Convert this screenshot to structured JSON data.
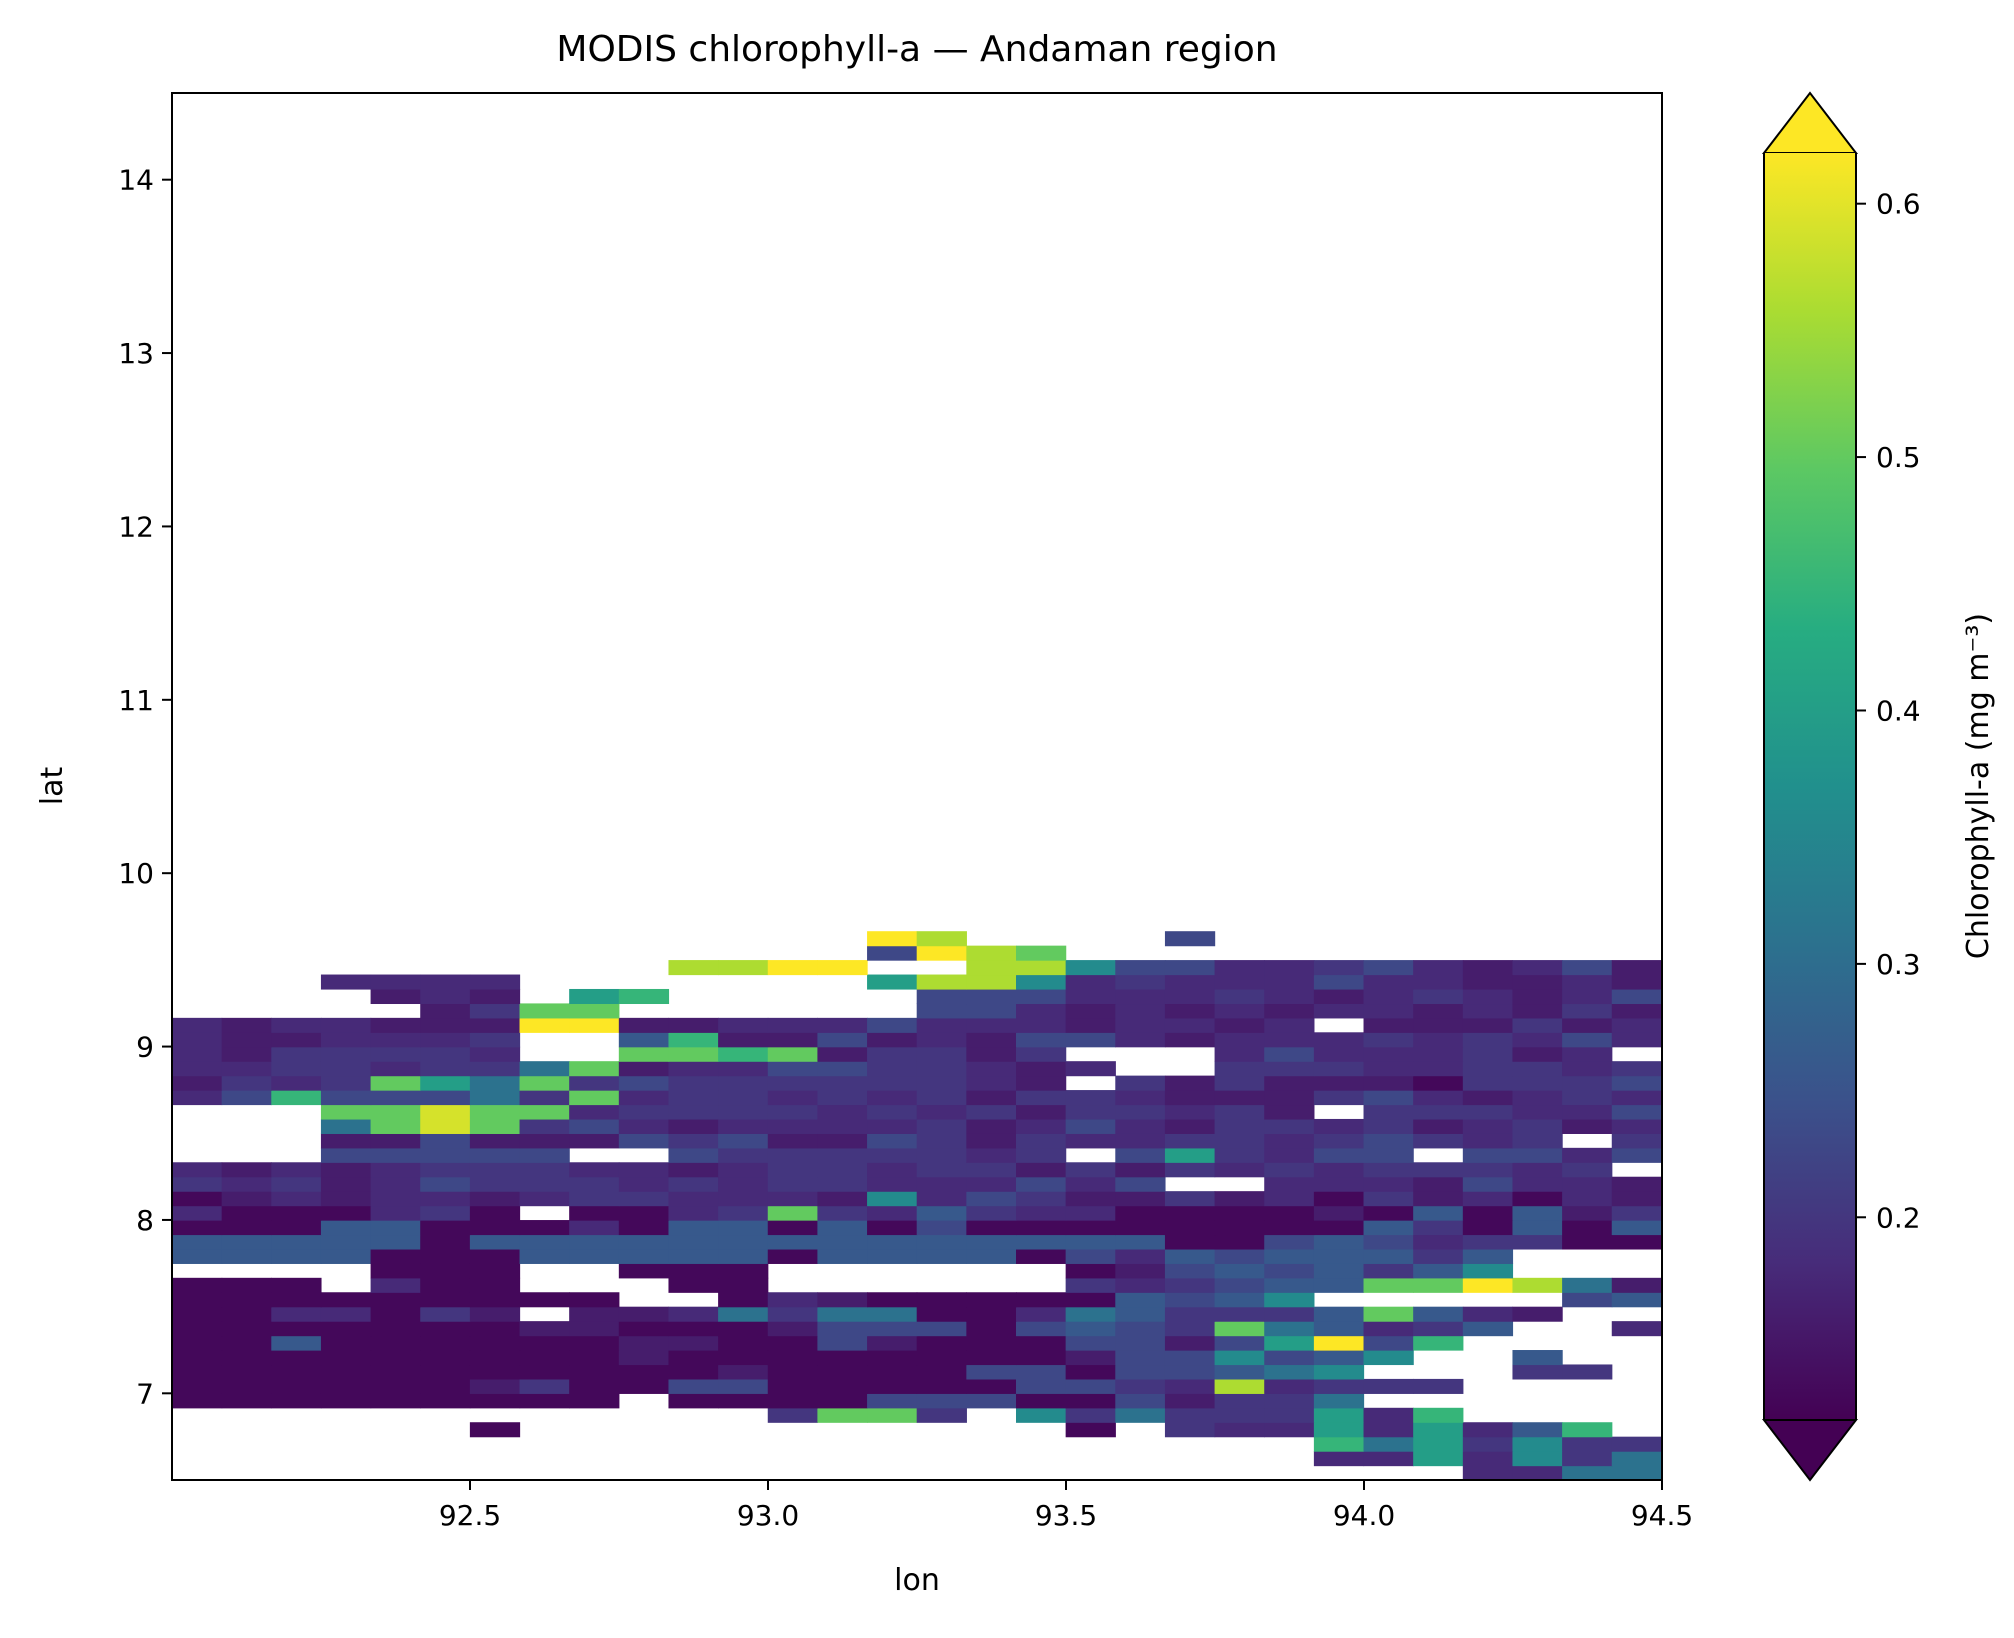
{
  "chart_data": {
    "type": "heatmap",
    "title": "MODIS chlorophyll-a — Andaman region",
    "xlabel": "lon",
    "ylabel": "lat",
    "xlim": [
      92.0,
      94.5
    ],
    "ylim": [
      6.5,
      14.5
    ],
    "x_ticks": [
      92.5,
      93.0,
      93.5,
      94.0,
      94.5
    ],
    "x_tick_labels": [
      "92.5",
      "93.0",
      "93.5",
      "94.0",
      "94.5"
    ],
    "y_ticks": [
      7,
      8,
      9,
      10,
      11,
      12,
      13,
      14
    ],
    "y_tick_labels": [
      "7",
      "8",
      "9",
      "10",
      "11",
      "12",
      "13",
      "14"
    ],
    "colorbar": {
      "label": "Chlorophyll-a (mg m⁻³)",
      "colormap": "viridis",
      "vmin": 0.12,
      "vmax": 0.62,
      "extend": "both",
      "ticks": [
        0.2,
        0.3,
        0.4,
        0.5,
        0.6
      ],
      "tick_labels": [
        "0.2",
        "0.3",
        "0.4",
        "0.5",
        "0.6"
      ]
    },
    "grid": false,
    "cell_size_deg": 0.0833,
    "lon_start": 92.0,
    "lat_start": 6.5,
    "rows_lat_ascending": [
      "..........................++000*=*",
      ".......................++o+@*0**oo",
      ".......................%0o*@**@@=o",
      "......-...........-.*++o+o+=%.+*o+",
      "............*&&*.@*0***o+%.....-..",
      "---------.----:::--:/**0'.........",
      "------/*--::-----::*+>+***........",
      "-----------/----::-::=0@...**..**-",
      "---------/--------/::@:=@..=...*..",
      "--=------//--:/---::/:o^:%;...*---",
      "-------//---/:::-:=:*&0=+*=..+****",
      "--++-*/.//+0*00--+0=***=&=+/..-/--",
      "---------..-+/-----=:=@.....:=*.--",
      "---.+--...--......*+*:==&&^>0/--..",
      "....---..---......-/:=:=*=@......-",
      "====---=====-====-:+=:===*=.....--",
      "=====-==============--:=:+**--=---",
      "---==---+-==-=-:--------=*-=-=----",
      "+---+*-.--+*&*+=*++----/-=-=/*----",
      "-/+/++/+**+++/@+:*//*/+-*/+-+/++++",
      "*+*/+:***+*+**+++:+:..+++/:++/*++*",
      "+/+/+***++/+**+**/*/*+*+***+*.+/*:",
      "...:::::..:*****+*.:o*+::.::+:**::",
      "...//:///:*://:*/*++**+*:*+*.*//*+",
      "...0&<&*:+/++++*/+:+/**+*/+*/+*+/+",
      "...&&<&&+****+*+*/**+*/.***++:/.**",
      "+:%:::0*&+**+*+*/**+///*:+/+*+/+*/",
      "/*+*&o0&*:******+/.*/*///-***:/*//",
      "++**+**0&/++::**+/+..***++**+*/*++",
      "+/****+..&&%&/**/*...+:+++*/+.//++",
      "+//+++*..=%//:/+/::+/+++*+*+:++/+*",
      "+/++///^^//+++:+++/++/+.///*/+/+++",
      "...../*&&......::+/+/+/++/+/*////*",
      "..../+/.o%.....:::+++*+/+*+/+://///",
      "...++++.......o>>@+*+++:++//+//++//",
      "..........>>^^..>>@::++*:+/+:/+++::",
      "..............:^>&...............",
      "..............^>....:............."
    ]
  }
}
